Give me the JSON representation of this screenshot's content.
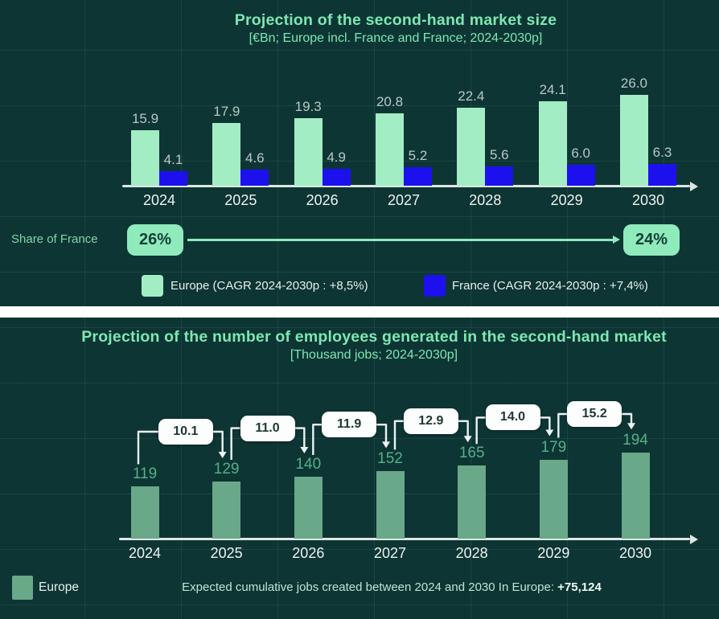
{
  "colors": {
    "background": "#0d3534",
    "divider": "#fcfdfc",
    "title_text": "#7de8b2",
    "europe_bar": "#a3edc4",
    "france_bar": "#1c11ee",
    "jobs_bar": "#69a888",
    "top_value_label": "#b9c9c4",
    "jobs_value_label": "#55b087",
    "axis": "#dde6e2",
    "share_pill_bg": "#8febbc",
    "share_pill_text": "#123f37",
    "callout_bg": "#fcfdfd",
    "callout_text": "#203832",
    "connector": "#eef4f1"
  },
  "chart_data": [
    {
      "type": "bar",
      "title": "Projection of the second-hand market size",
      "subtitle": "[€Bn; Europe incl. France and France; 2024-2030p]",
      "categories": [
        "2024",
        "2025",
        "2026",
        "2027",
        "2028",
        "2029",
        "2030"
      ],
      "series": [
        {
          "name": "Europe (CAGR 2024-2030p : +8,5%)",
          "color": "#a3edc4",
          "values": [
            15.9,
            17.9,
            19.3,
            20.8,
            22.4,
            24.1,
            26.0
          ]
        },
        {
          "name": "France (CAGR 2024-2030p : +7,4%)",
          "color": "#1c11ee",
          "values": [
            4.1,
            4.6,
            4.9,
            5.2,
            5.6,
            6.0,
            6.3
          ]
        }
      ],
      "ylim": [
        0,
        28
      ],
      "grid": true,
      "legend_position": "bottom",
      "annotation": {
        "label": "Share of France",
        "start": "26%",
        "end": "24%"
      }
    },
    {
      "type": "bar",
      "title": "Projection of the number of employees generated in the second-hand market",
      "subtitle": "[Thousand jobs; 2024-2030p]",
      "categories": [
        "2024",
        "2025",
        "2026",
        "2027",
        "2028",
        "2029",
        "2030"
      ],
      "series": [
        {
          "name": "Europe",
          "color": "#69a888",
          "values": [
            119,
            129,
            140,
            152,
            165,
            179,
            194
          ]
        }
      ],
      "growth_callouts": [
        10.1,
        11.0,
        11.9,
        12.9,
        14.0,
        15.2
      ],
      "ylim": [
        0,
        210
      ],
      "grid": true,
      "legend_position": "bottom-left",
      "footnote": {
        "prefix": "Expected cumulative jobs created between 2024 and 2030 In Europe: ",
        "value": "+75,124"
      }
    }
  ]
}
